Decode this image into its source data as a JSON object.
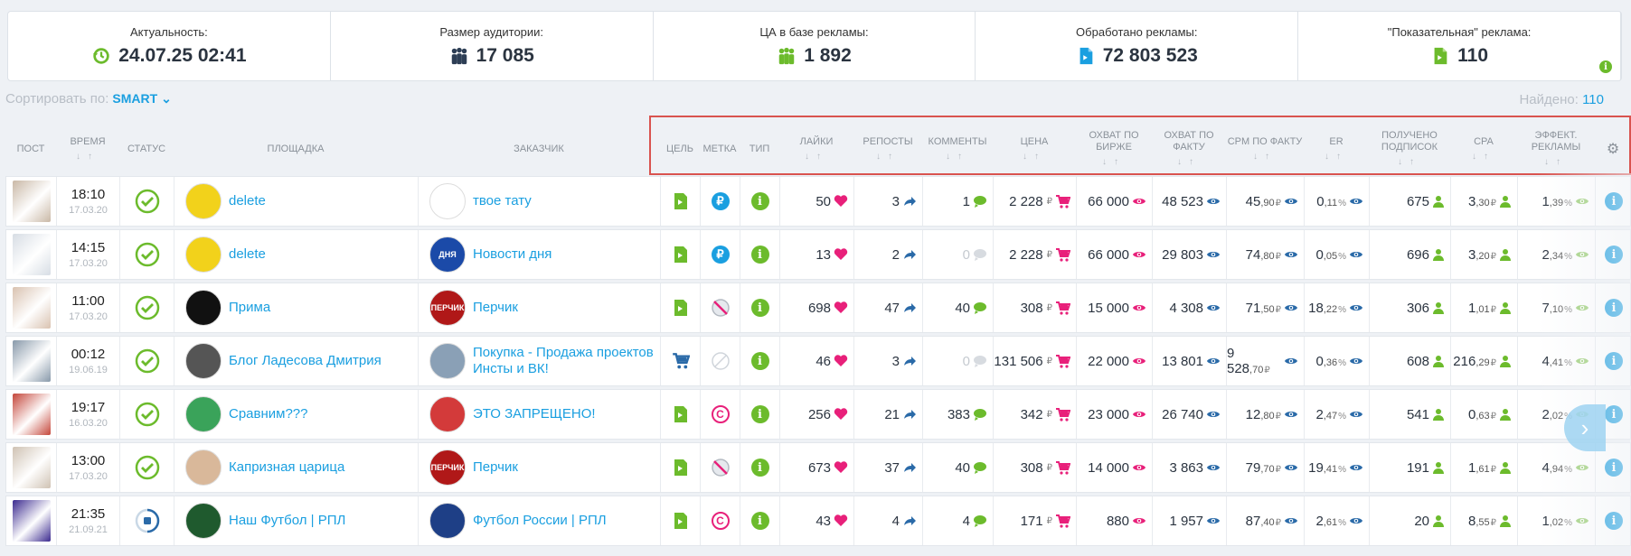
{
  "stats": [
    {
      "label": "Актуальность:",
      "value": "24.07.25 02:41",
      "icon": "clock-refresh-icon"
    },
    {
      "label": "Размер аудитории:",
      "value": "17 085",
      "icon": "audience-icon"
    },
    {
      "label": "ЦА в базе рекламы:",
      "value": "1 892",
      "icon": "target-audience-icon"
    },
    {
      "label": "Обработано рекламы:",
      "value": "72 803 523",
      "icon": "ad-document-icon"
    },
    {
      "label": "\"Показательная\" реклама:",
      "value": "110",
      "icon": "showcase-ad-icon"
    }
  ],
  "sort": {
    "label": "Сортировать по:",
    "value": "SMART"
  },
  "found": {
    "label": "Найдено:",
    "value": "110"
  },
  "headers": {
    "post": "ПОСТ",
    "time": "ВРЕМЯ",
    "status": "СТАТУС",
    "platform": "ПЛОЩАДКА",
    "customer": "ЗАКАЗЧИК",
    "goal": "ЦЕЛЬ",
    "mark": "МЕТКА",
    "type": "ТИП",
    "likes": "ЛАЙКИ",
    "reposts": "РЕПОСТЫ",
    "comments": "КОММЕНТЫ",
    "price": "ЦЕНА",
    "reach_exchange": "ОХВАТ ПО БИРЖЕ",
    "reach_fact": "ОХВАТ ПО ФАКТУ",
    "cpm": "CPM ПО ФАКТУ",
    "er": "ER",
    "subs": "ПОЛУЧЕНО ПОДПИСОК",
    "cpa": "CPA",
    "eff": "ЭФФЕКТ. РЕКЛАМЫ"
  },
  "rows": [
    {
      "time": "18:10",
      "date": "17.03.20",
      "status": "done",
      "platform": "delete",
      "customer": "твое тату",
      "goal": "post",
      "mark": "ruble",
      "likes": "50",
      "reposts": "3",
      "comments": "1",
      "comments_zero": false,
      "price": "2 228",
      "reach_ex": "66 000",
      "reach_fact": "48 523",
      "cpm_int": "45",
      "cpm_dec": ",90",
      "er_int": "0",
      "er_dec": ",11",
      "subs": "675",
      "cpa_int": "3",
      "cpa_dec": ",30",
      "eff_int": "1",
      "eff_dec": ",39"
    },
    {
      "time": "14:15",
      "date": "17.03.20",
      "status": "done",
      "platform": "delete",
      "customer": "Новости дня",
      "goal": "post",
      "mark": "ruble",
      "likes": "13",
      "reposts": "2",
      "comments": "0",
      "comments_zero": true,
      "price": "2 228",
      "reach_ex": "66 000",
      "reach_fact": "29 803",
      "cpm_int": "74",
      "cpm_dec": ",80",
      "er_int": "0",
      "er_dec": ",05",
      "subs": "696",
      "cpa_int": "3",
      "cpa_dec": ",20",
      "eff_int": "2",
      "eff_dec": ",34"
    },
    {
      "time": "11:00",
      "date": "17.03.20",
      "status": "done",
      "platform": "Прима",
      "customer": "Перчик",
      "goal": "post",
      "mark": "noad",
      "likes": "698",
      "reposts": "47",
      "comments": "40",
      "comments_zero": false,
      "price": "308",
      "reach_ex": "15 000",
      "reach_fact": "4 308",
      "cpm_int": "71",
      "cpm_dec": ",50",
      "er_int": "18",
      "er_dec": ",22",
      "subs": "306",
      "cpa_int": "1",
      "cpa_dec": ",01",
      "eff_int": "7",
      "eff_dec": ",10"
    },
    {
      "time": "00:12",
      "date": "19.06.19",
      "status": "done",
      "platform": "Блог Ладесова Дмитрия",
      "customer": "Покупка - Продажа проектов Инсты и ВК!",
      "goal": "cart",
      "mark": "none",
      "likes": "46",
      "reposts": "3",
      "comments": "0",
      "comments_zero": true,
      "price": "131 506",
      "reach_ex": "22 000",
      "reach_fact": "13 801",
      "cpm_int": "9 528",
      "cpm_dec": ",70",
      "er_int": "0",
      "er_dec": ",36",
      "subs": "608",
      "cpa_int": "216",
      "cpa_dec": ",29",
      "eff_int": "4",
      "eff_dec": ",41"
    },
    {
      "time": "19:17",
      "date": "16.03.20",
      "status": "done",
      "platform": "Сравним???",
      "customer": "ЭТО ЗАПРЕЩЕНО!",
      "goal": "post",
      "mark": "copy",
      "likes": "256",
      "reposts": "21",
      "comments": "383",
      "comments_zero": false,
      "price": "342",
      "reach_ex": "23 000",
      "reach_fact": "26 740",
      "cpm_int": "12",
      "cpm_dec": ",80",
      "er_int": "2",
      "er_dec": ",47",
      "subs": "541",
      "cpa_int": "0",
      "cpa_dec": ",63",
      "eff_int": "2",
      "eff_dec": ",02"
    },
    {
      "time": "13:00",
      "date": "17.03.20",
      "status": "done",
      "platform": "Капризная царица",
      "customer": "Перчик",
      "goal": "post",
      "mark": "noad",
      "likes": "673",
      "reposts": "37",
      "comments": "40",
      "comments_zero": false,
      "price": "308",
      "reach_ex": "14 000",
      "reach_fact": "3 863",
      "cpm_int": "79",
      "cpm_dec": ",70",
      "er_int": "19",
      "er_dec": ",41",
      "subs": "191",
      "cpa_int": "1",
      "cpa_dec": ",61",
      "eff_int": "4",
      "eff_dec": ",94"
    },
    {
      "time": "21:35",
      "date": "21.09.21",
      "status": "progress",
      "platform": "Наш Футбол | РПЛ",
      "customer": "Футбол России | РПЛ",
      "goal": "post",
      "mark": "copy",
      "likes": "43",
      "reposts": "4",
      "comments": "4",
      "comments_zero": false,
      "price": "171",
      "reach_ex": "880",
      "reach_fact": "1 957",
      "cpm_int": "87",
      "cpm_dec": ",40",
      "er_int": "2",
      "er_dec": ",61",
      "subs": "20",
      "cpa_int": "8",
      "cpa_dec": ",55",
      "eff_int": "1",
      "eff_dec": ",02"
    }
  ],
  "avatars": {
    "platform": [
      "#f2d21b",
      "#f2d21b",
      "#111111",
      "#555555",
      "#3aa35a",
      "#d9b89a",
      "#1f5a2e"
    ],
    "customer": [
      "#ffffff",
      "#1b4aa8",
      "#b01818",
      "#8aa0b6",
      "#d33a3a",
      "#b01818",
      "#1e3f86"
    ],
    "customer_text": [
      "",
      "ДНЯ",
      "ПЕРЧИК",
      "",
      "",
      "ПЕРЧИК",
      ""
    ]
  },
  "colors": {
    "accent": "#1a9fe0",
    "green": "#6cbb2c",
    "pink": "#e8207a",
    "cpm_eye": "#2a6aa8"
  }
}
